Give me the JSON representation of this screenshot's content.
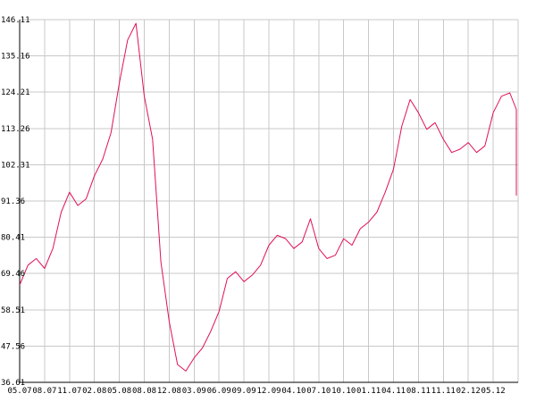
{
  "chart_data": {
    "type": "line",
    "title": "",
    "xlabel": "",
    "ylabel": "",
    "grid": true,
    "legend": "none",
    "x_ticks": [
      "05.07",
      "08.07",
      "11.07",
      "02.08",
      "05.08",
      "08.08",
      "12.08",
      "03.09",
      "06.09",
      "09.09",
      "12.09",
      "04.10",
      "07.10",
      "10.10",
      "01.11",
      "04.11",
      "08.11",
      "11.11",
      "02.12",
      "05.12"
    ],
    "y_ticks": [
      "36.61",
      "47.56",
      "58.51",
      "69.46",
      "80.41",
      "91.36",
      "102.31",
      "113.26",
      "124.21",
      "135.16",
      "146.11"
    ],
    "ylim": [
      36.61,
      146.11
    ],
    "series": [
      {
        "color": "#e0105a",
        "x": [
          "2007-05",
          "2007-06",
          "2007-07",
          "2007-08",
          "2007-09",
          "2007-10",
          "2007-11",
          "2007-12",
          "2008-01",
          "2008-02",
          "2008-03",
          "2008-04",
          "2008-05",
          "2008-06",
          "2008-07",
          "2008-08",
          "2008-09",
          "2008-10",
          "2008-11",
          "2008-12",
          "2009-01",
          "2009-02",
          "2009-03",
          "2009-04",
          "2009-05",
          "2009-06",
          "2009-07",
          "2009-08",
          "2009-09",
          "2009-10",
          "2009-11",
          "2009-12",
          "2010-01",
          "2010-02",
          "2010-03",
          "2010-04",
          "2010-05",
          "2010-06",
          "2010-07",
          "2010-08",
          "2010-09",
          "2010-10",
          "2010-11",
          "2010-12",
          "2011-01",
          "2011-02",
          "2011-03",
          "2011-04",
          "2011-05",
          "2011-06",
          "2011-07",
          "2011-08",
          "2011-09",
          "2011-10",
          "2011-11",
          "2011-12",
          "2012-01",
          "2012-02",
          "2012-03",
          "2012-04",
          "2012-05",
          "2012-06",
          "2012-07"
        ],
        "values": [
          66,
          72,
          74,
          71,
          77,
          88,
          94,
          90,
          92,
          99,
          104,
          112,
          127,
          140,
          145,
          123,
          110,
          73,
          55,
          42,
          40,
          44,
          47,
          52,
          58,
          68,
          70,
          67,
          69,
          72,
          78,
          81,
          80,
          77,
          79,
          86,
          77,
          74,
          75,
          80,
          78,
          83,
          85,
          88,
          94,
          101,
          114,
          122,
          118,
          113,
          115,
          110,
          106,
          107,
          109,
          106,
          108,
          118,
          123,
          124,
          119,
          105,
          93
        ]
      }
    ]
  }
}
